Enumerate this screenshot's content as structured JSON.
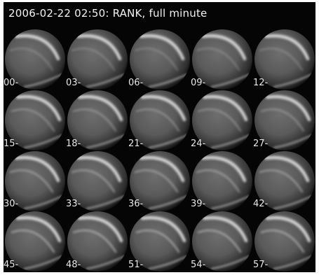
{
  "title": "2006-02-22 02:50: RANK, full minute",
  "grid": {
    "columns": 5,
    "rows": 4
  },
  "frames": [
    {
      "label": "00-"
    },
    {
      "label": "03-"
    },
    {
      "label": "06-"
    },
    {
      "label": "09-"
    },
    {
      "label": "12-"
    },
    {
      "label": "15-"
    },
    {
      "label": "18-"
    },
    {
      "label": "21-"
    },
    {
      "label": "24-"
    },
    {
      "label": "27-"
    },
    {
      "label": "30-"
    },
    {
      "label": "33-"
    },
    {
      "label": "36-"
    },
    {
      "label": "39-"
    },
    {
      "label": "42-"
    },
    {
      "label": "45-"
    },
    {
      "label": "48-"
    },
    {
      "label": "51-"
    },
    {
      "label": "54-"
    },
    {
      "label": "57-"
    }
  ],
  "colors": {
    "background": "#050505",
    "sky": "#5a5a5a",
    "aurora": "#e6e6e6",
    "text": "#f2f2f2"
  }
}
